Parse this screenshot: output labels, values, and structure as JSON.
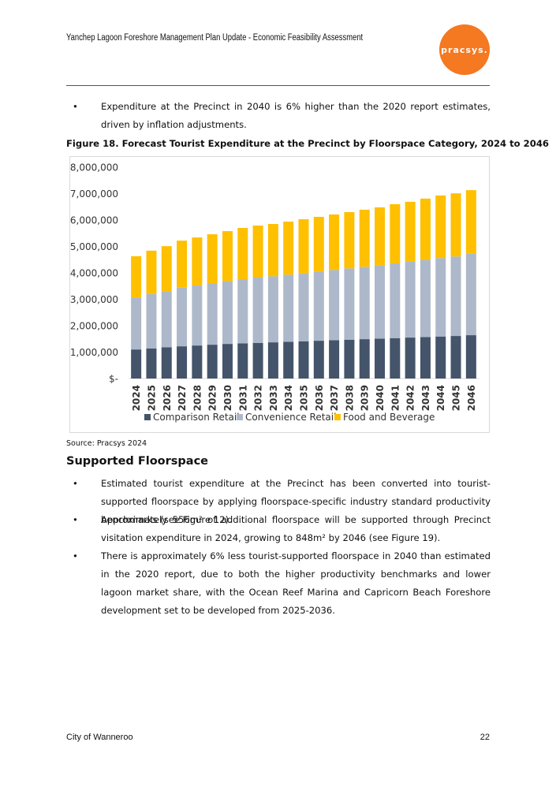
{
  "header": {
    "title": "Yanchep Lagoon Foreshore Management Plan Update - Economic Feasibility Assessment",
    "logo": "pracsys."
  },
  "intro_bullets": [
    "Expenditure at the Precinct in 2040 is 6% higher than the 2020 report estimates, driven by inflation adjustments."
  ],
  "figure": {
    "caption": "Figure 18. Forecast Tourist Expenditure at the Precinct by Floorspace Category, 2024 to 2046"
  },
  "chart_data": {
    "type": "stacked_bar",
    "categories": [
      "2024",
      "2025",
      "2026",
      "2027",
      "2028",
      "2029",
      "2030",
      "2031",
      "2032",
      "2033",
      "2034",
      "2035",
      "2036",
      "2037",
      "2038",
      "2039",
      "2040",
      "2041",
      "2042",
      "2043",
      "2044",
      "2045",
      "2046"
    ],
    "series": [
      {
        "name": "Comparison Retail",
        "color": "#44546a",
        "values": [
          1100000,
          1140000,
          1180000,
          1220000,
          1250000,
          1280000,
          1310000,
          1330000,
          1350000,
          1370000,
          1390000,
          1410000,
          1430000,
          1450000,
          1470000,
          1490000,
          1510000,
          1530000,
          1550000,
          1570000,
          1590000,
          1610000,
          1640000
        ]
      },
      {
        "name": "Convenience Retail",
        "color": "#adb9ca",
        "values": [
          1970000,
          2060000,
          2130000,
          2220000,
          2270000,
          2330000,
          2380000,
          2430000,
          2470000,
          2500000,
          2540000,
          2580000,
          2620000,
          2660000,
          2700000,
          2740000,
          2780000,
          2830000,
          2870000,
          2920000,
          2970000,
          3010000,
          3080000
        ]
      },
      {
        "name": "Food and Beverage",
        "color": "#ffc000",
        "values": [
          1560000,
          1640000,
          1700000,
          1780000,
          1820000,
          1850000,
          1890000,
          1940000,
          1970000,
          1980000,
          2010000,
          2040000,
          2070000,
          2100000,
          2130000,
          2160000,
          2190000,
          2240000,
          2270000,
          2320000,
          2370000,
          2390000,
          2410000
        ]
      }
    ],
    "ylim": [
      0,
      8000000
    ],
    "yticks": [
      {
        "value": 0,
        "label": "$-"
      },
      {
        "value": 1000000,
        "label": "$1,000,000"
      },
      {
        "value": 2000000,
        "label": "$2,000,000"
      },
      {
        "value": 3000000,
        "label": "$3,000,000"
      },
      {
        "value": 4000000,
        "label": "$4,000,000"
      },
      {
        "value": 5000000,
        "label": "$5,000,000"
      },
      {
        "value": 6000000,
        "label": "$6,000,000"
      },
      {
        "value": 7000000,
        "label": "$7,000,000"
      },
      {
        "value": 8000000,
        "label": "$8,000,000"
      }
    ],
    "grid": false,
    "legend": "bottom"
  },
  "source": "Source: Pracsys 2024",
  "section": {
    "heading": "Supported Floorspace",
    "bullets": [
      "Estimated tourist expenditure at the Precinct has been converted into tourist-supported floorspace by applying floorspace-specific industry standard productivity benchmarks (see Figure 12).",
      "Approximately 556m² of additional floorspace will be supported through Precinct visitation expenditure in 2024, growing to 848m² by 2046 (see Figure 19).",
      "There is approximately 6% less tourist-supported floorspace in 2040 than estimated in the 2020 report, due to both the higher productivity benchmarks and lower lagoon market share, with the Ocean Reef Marina and Capricorn Beach Foreshore development set to be developed from 2025-2036."
    ]
  },
  "footer": {
    "left": "City of Wanneroo",
    "page": "22"
  }
}
